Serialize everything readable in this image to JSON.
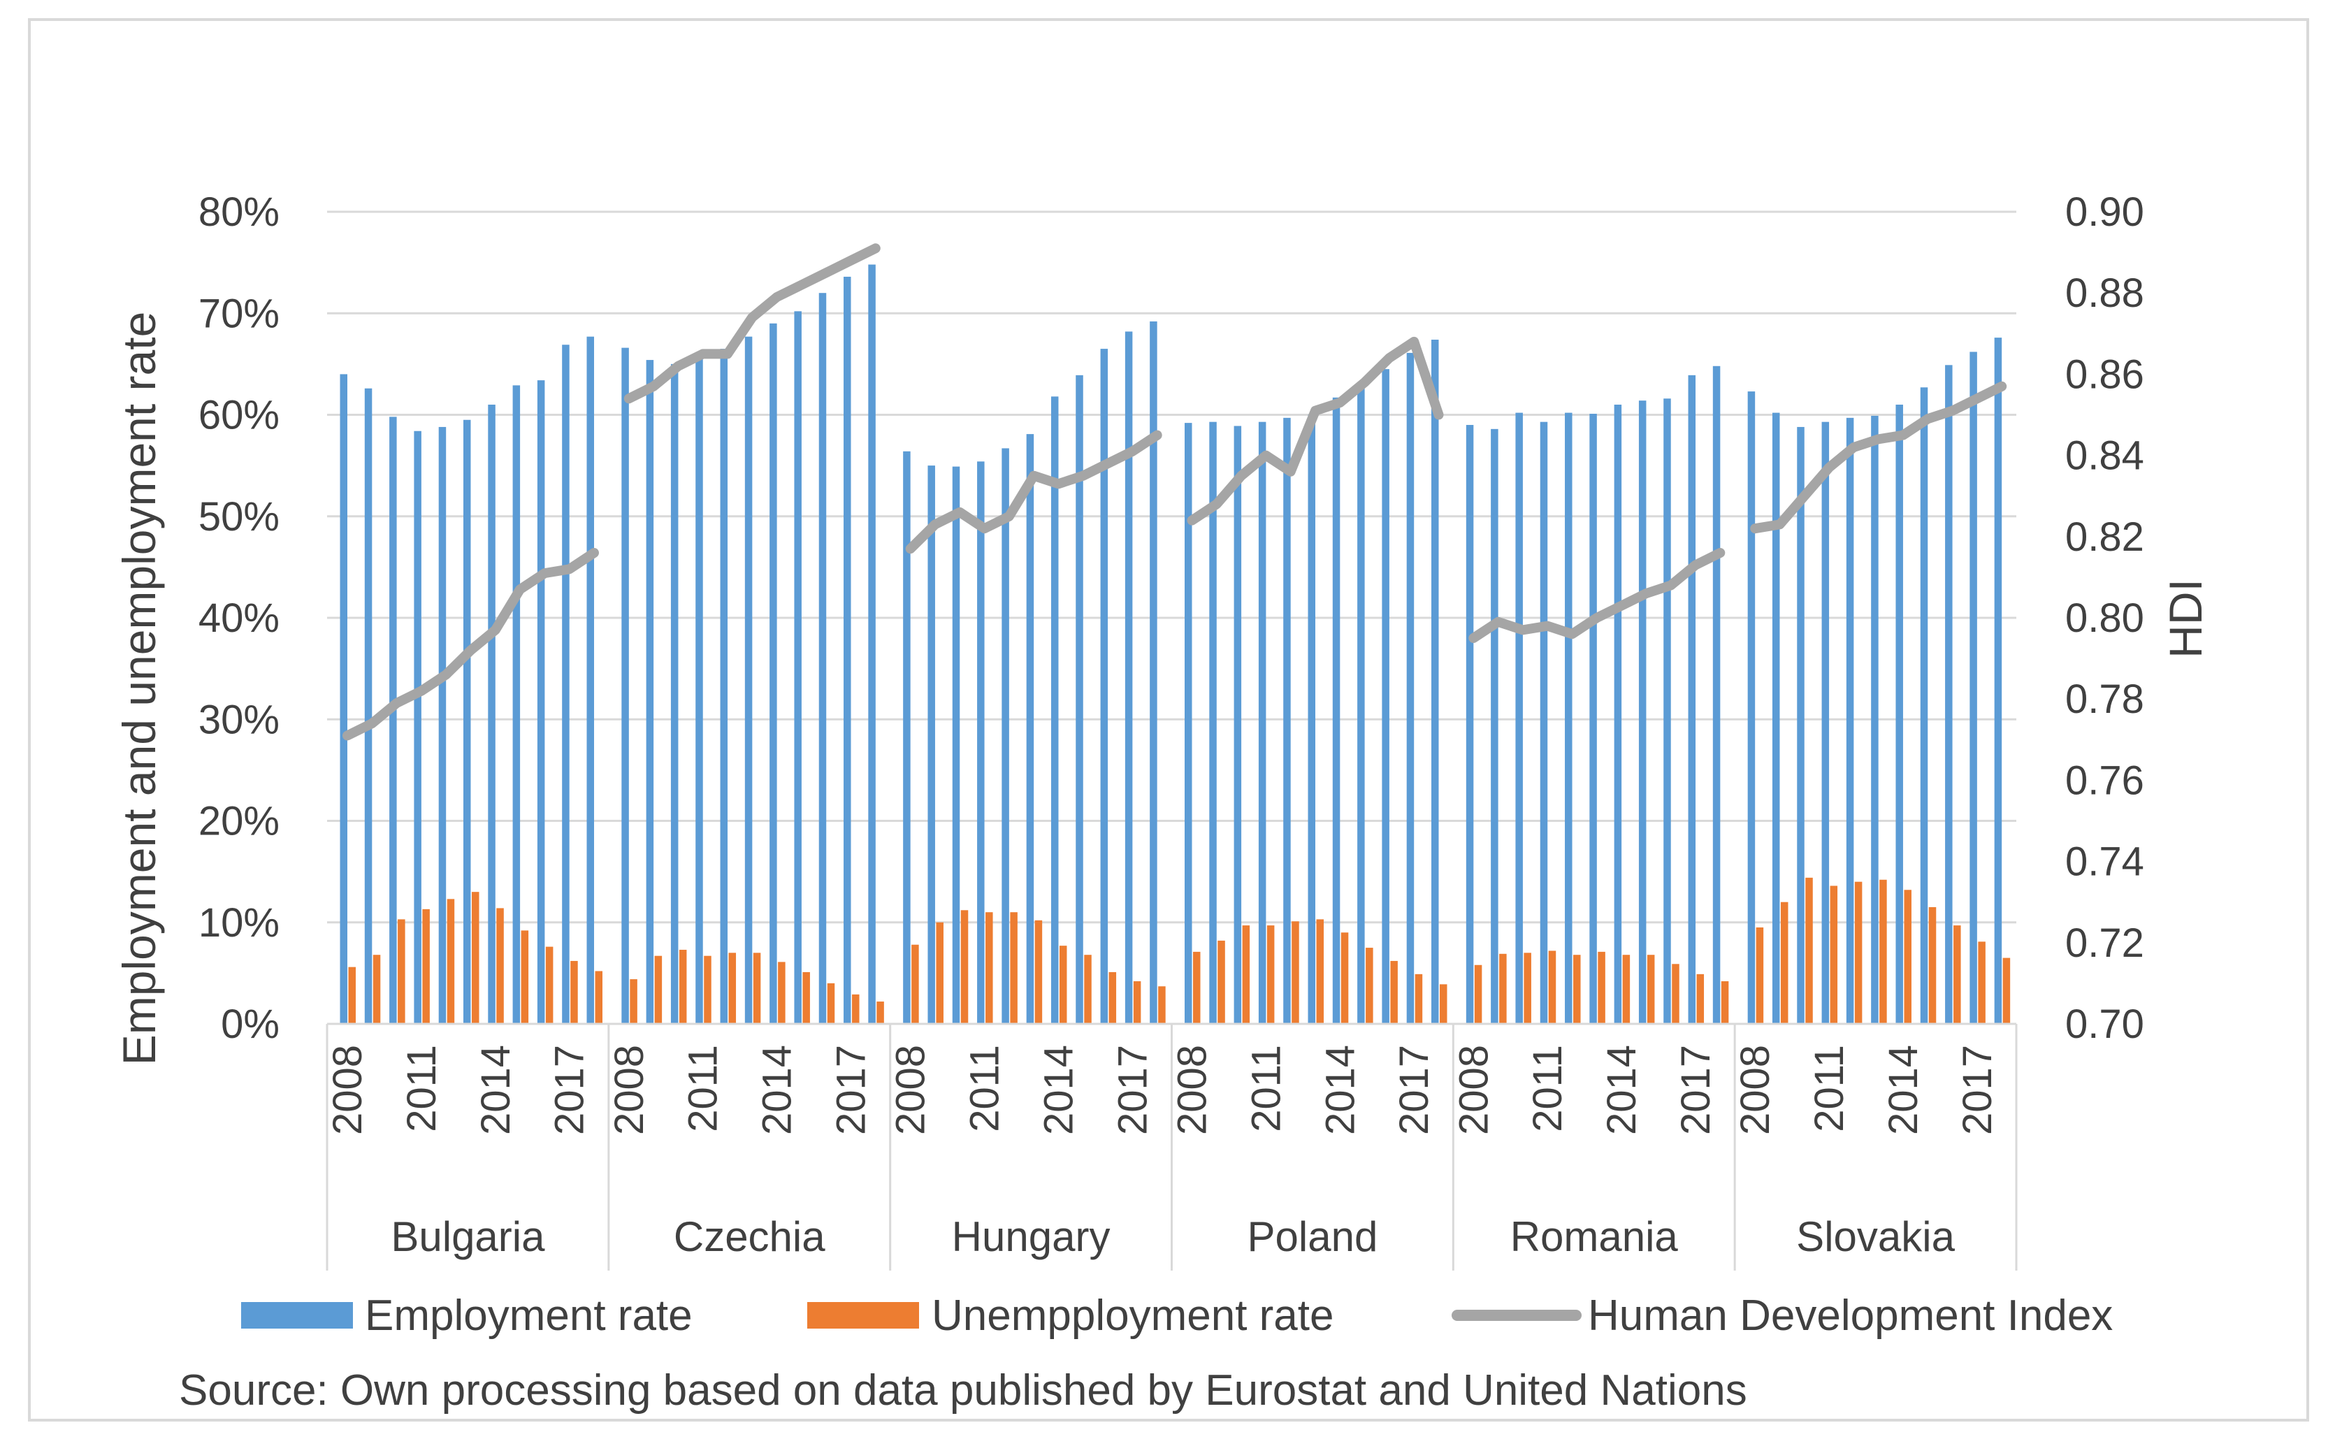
{
  "chart_data": {
    "type": "bar+line",
    "groups": [
      "Bulgaria",
      "Czechia",
      "Hungary",
      "Poland",
      "Romania",
      "Slovakia"
    ],
    "years": [
      2008,
      2009,
      2010,
      2011,
      2012,
      2013,
      2014,
      2015,
      2016,
      2017,
      2018
    ],
    "year_tick_labels": [
      "2008",
      "2011",
      "2014",
      "2017"
    ],
    "left_axis": {
      "title": "Employment and unemployment rate",
      "min": 0,
      "max": 80,
      "step": 10,
      "tick_labels": [
        "0%",
        "10%",
        "20%",
        "30%",
        "40%",
        "50%",
        "60%",
        "70%",
        "80%"
      ]
    },
    "right_axis": {
      "title": "HDI",
      "min": 0.7,
      "max": 0.9,
      "step": 0.02,
      "tick_labels": [
        "0.70",
        "0.72",
        "0.74",
        "0.76",
        "0.78",
        "0.80",
        "0.82",
        "0.84",
        "0.86",
        "0.88",
        "0.90"
      ]
    },
    "grid": true,
    "legend_position": "bottom",
    "series": [
      {
        "name": "Employment rate",
        "kind": "bar",
        "axis": "left",
        "color": "#5b9bd5",
        "values": {
          "Bulgaria": [
            64.0,
            62.6,
            59.8,
            58.4,
            58.8,
            59.5,
            61.0,
            62.9,
            63.4,
            66.9,
            67.7
          ],
          "Czechia": [
            66.6,
            65.4,
            65.0,
            65.7,
            66.5,
            67.7,
            69.0,
            70.2,
            72.0,
            73.6,
            74.8
          ],
          "Hungary": [
            56.4,
            55.0,
            54.9,
            55.4,
            56.7,
            58.1,
            61.8,
            63.9,
            66.5,
            68.2,
            69.2
          ],
          "Poland": [
            59.2,
            59.3,
            58.9,
            59.3,
            59.7,
            60.0,
            61.7,
            62.9,
            64.5,
            66.1,
            67.4
          ],
          "Romania": [
            59.0,
            58.6,
            60.2,
            59.3,
            60.2,
            60.1,
            61.0,
            61.4,
            61.6,
            63.9,
            64.8
          ],
          "Slovakia": [
            62.3,
            60.2,
            58.8,
            59.3,
            59.7,
            59.9,
            61.0,
            62.7,
            64.9,
            66.2,
            67.6
          ]
        }
      },
      {
        "name": "Unempployment rate",
        "kind": "bar",
        "axis": "left",
        "color": "#ed7d31",
        "values": {
          "Bulgaria": [
            5.6,
            6.8,
            10.3,
            11.3,
            12.3,
            13.0,
            11.4,
            9.2,
            7.6,
            6.2,
            5.2
          ],
          "Czechia": [
            4.4,
            6.7,
            7.3,
            6.7,
            7.0,
            7.0,
            6.1,
            5.1,
            4.0,
            2.9,
            2.2
          ],
          "Hungary": [
            7.8,
            10.0,
            11.2,
            11.0,
            11.0,
            10.2,
            7.7,
            6.8,
            5.1,
            4.2,
            3.7
          ],
          "Poland": [
            7.1,
            8.2,
            9.7,
            9.7,
            10.1,
            10.3,
            9.0,
            7.5,
            6.2,
            4.9,
            3.9
          ],
          "Romania": [
            5.8,
            6.9,
            7.0,
            7.2,
            6.8,
            7.1,
            6.8,
            6.8,
            5.9,
            4.9,
            4.2
          ],
          "Slovakia": [
            9.5,
            12.0,
            14.4,
            13.6,
            14.0,
            14.2,
            13.2,
            11.5,
            9.7,
            8.1,
            6.5
          ]
        }
      },
      {
        "name": "Human Development Index",
        "kind": "line",
        "axis": "right",
        "color": "#a5a5a5",
        "values": {
          "Bulgaria": [
            0.771,
            0.774,
            0.779,
            0.782,
            0.786,
            0.792,
            0.797,
            0.807,
            0.811,
            0.812,
            0.816
          ],
          "Czechia": [
            0.854,
            0.857,
            0.862,
            0.865,
            0.865,
            0.874,
            0.879,
            0.882,
            0.885,
            0.888,
            0.891
          ],
          "Hungary": [
            0.817,
            0.823,
            0.826,
            0.822,
            0.825,
            0.835,
            0.833,
            0.835,
            0.838,
            0.841,
            0.845
          ],
          "Poland": [
            0.824,
            0.828,
            0.835,
            0.84,
            0.836,
            0.851,
            0.853,
            0.858,
            0.864,
            0.868,
            0.85
          ],
          "Romania": [
            0.795,
            0.799,
            0.797,
            0.798,
            0.796,
            0.8,
            0.803,
            0.806,
            0.808,
            0.813,
            0.816
          ],
          "Slovakia": [
            0.822,
            0.823,
            0.83,
            0.837,
            0.842,
            0.844,
            0.845,
            0.849,
            0.851,
            0.854,
            0.857
          ]
        }
      }
    ],
    "source": "Source: Own processing based on data published by Eurostat and United Nations"
  }
}
